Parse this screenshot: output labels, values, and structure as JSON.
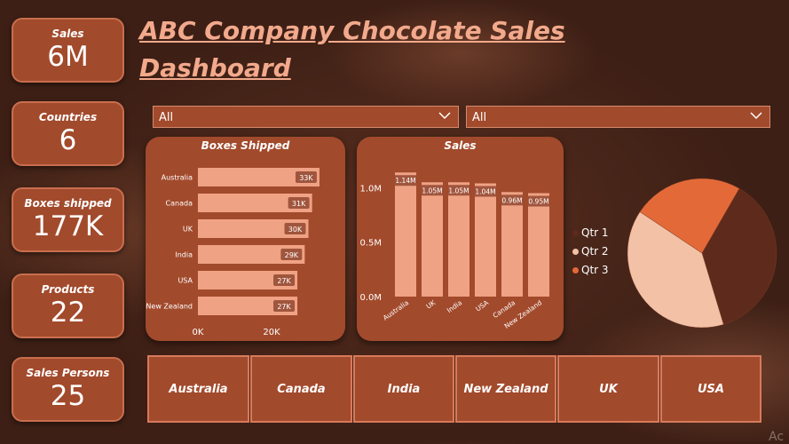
{
  "title": "ABC Company  Chocolate Sales Dashboard",
  "kpis": [
    {
      "label": "Sales",
      "value": "6M"
    },
    {
      "label": "Countries",
      "value": "6"
    },
    {
      "label": "Boxes shipped",
      "value": "177K"
    },
    {
      "label": "Products",
      "value": "22"
    },
    {
      "label": "Sales Persons",
      "value": "25"
    }
  ],
  "slicers": [
    {
      "value": "All"
    },
    {
      "value": "All"
    }
  ],
  "tiles": [
    "Australia",
    "Canada",
    "India",
    "New Zealand",
    "UK",
    "USA"
  ],
  "watermark": "Ac",
  "legend_colors": [
    "#5e2a1b",
    "#f2c1a6",
    "#e36a38"
  ],
  "chart_data": [
    {
      "type": "bar",
      "orientation": "horizontal",
      "title": "Boxes Shipped",
      "categories": [
        "Australia",
        "Canada",
        "UK",
        "India",
        "USA",
        "New Zealand"
      ],
      "values": [
        33000,
        31000,
        30000,
        29000,
        27000,
        27000
      ],
      "data_labels": [
        "33K",
        "31K",
        "30K",
        "29K",
        "27K",
        "27K"
      ],
      "x_ticks": [
        "0K",
        "20K"
      ],
      "xlim": [
        0,
        40000
      ],
      "bar_color": "#f0a285"
    },
    {
      "type": "bar",
      "title": "Sales",
      "categories": [
        "Australia",
        "UK",
        "India",
        "USA",
        "Canada",
        "New Zealand"
      ],
      "values": [
        1140000,
        1050000,
        1050000,
        1040000,
        960000,
        950000
      ],
      "data_labels": [
        "1.14M",
        "1.05M",
        "1.05M",
        "1.04M",
        "0.96M",
        "0.95M"
      ],
      "y_ticks": [
        "1.0M",
        "0.5M",
        "0.0M"
      ],
      "ylim": [
        0,
        1150000
      ],
      "bar_color": "#f0a285"
    },
    {
      "type": "pie",
      "series": [
        {
          "name": "Qtr 1",
          "value": 0.37
        },
        {
          "name": "Qtr 2",
          "value": 0.39
        },
        {
          "name": "Qtr 3",
          "value": 0.24
        }
      ],
      "legend_position": "left"
    }
  ]
}
